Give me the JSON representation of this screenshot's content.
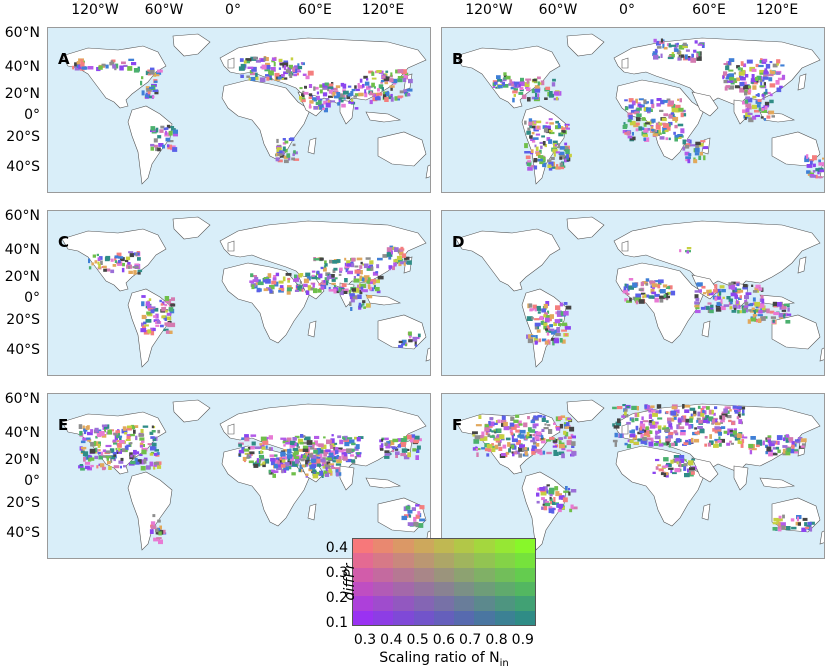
{
  "lon_labels": [
    "120°W",
    "60°W",
    "0°",
    "60°E",
    "120°E"
  ],
  "lat_labels": [
    "60°N",
    "40°N",
    "20°N",
    "0°",
    "20°S",
    "40°S"
  ],
  "panels": [
    {
      "letter": "A"
    },
    {
      "letter": "B"
    },
    {
      "letter": "C"
    },
    {
      "letter": "D"
    },
    {
      "letter": "E"
    },
    {
      "letter": "F"
    }
  ],
  "legend": {
    "y_label": "diffPr",
    "y_ticks": [
      "0.4",
      "0.3",
      "0.2",
      "0.1"
    ],
    "x_ticks": [
      "0.3",
      "0.4",
      "0.5",
      "0.6",
      "0.7",
      "0.8",
      "0.9"
    ],
    "x_label_main": "Scaling ratio of N",
    "x_label_sub": "in",
    "corner_colors": {
      "top_left": "#f7787a",
      "top_right": "#88f72a",
      "bottom_left": "#9a32f2",
      "bottom_right": "#2f8c86"
    }
  },
  "colors": {
    "ocean": "#d9eef9",
    "land": "#ffffff",
    "coast": "#555555"
  }
}
